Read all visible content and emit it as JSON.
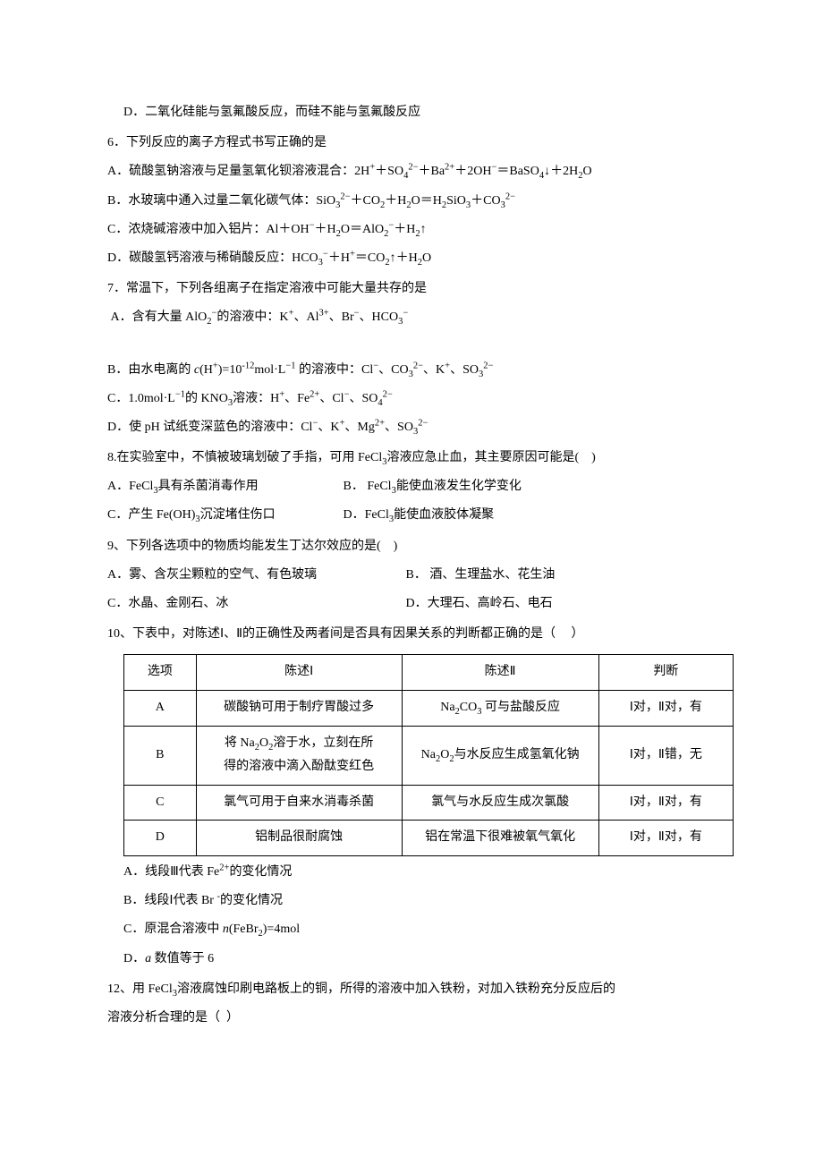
{
  "line_d": "D．二氧化硅能与氢氟酸反应，而硅不能与氢氟酸反应",
  "q6": {
    "stem": "6．下列反应的离子方程式书写正确的是",
    "A": "A．硫酸氢钠溶液与足量氢氧化钡溶液混合：2H<sup>+</sup>＋SO<sub>4</sub><sup>2−</sup>＋Ba<sup>2+</sup>＋2OH<sup>−</sup>＝BaSO<sub>4</sub>↓＋2H<sub>2</sub>O",
    "B": "B．水玻璃中通入过量二氧化碳气体：SiO<sub>3</sub><sup>2−</sup>＋CO<sub>2</sub>＋H<sub>2</sub>O＝H<sub>2</sub>SiO<sub>3</sub>＋CO<sub>3</sub><sup>2−</sup>",
    "C": "C．浓烧碱溶液中加入铝片：Al＋OH<sup>−</sup>＋H<sub>2</sub>O＝AlO<sub>2</sub><sup>−</sup>＋H<sub>2</sub>↑",
    "D": "D．碳酸氢钙溶液与稀硝酸反应：HCO<sub>3</sub><sup>−</sup>＋H<sup>+</sup>＝CO<sub>2</sub>↑＋H<sub>2</sub>O"
  },
  "q7": {
    "stem": "7．常温下，下列各组离子在指定溶液中可能大量共存的是",
    "A": "&nbsp;A．含有大量 AlO<sub>2</sub><sup>−</sup>的溶液中：K<sup>+</sup>、Al<sup>3+</sup>、Br<sup>−</sup>、HCO<sub>3</sub><sup>−</sup>",
    "B": "B．由水电离的 <i>c</i>(H<sup>+</sup>)=10<sup>-12</sup>mol·L<sup>−1</sup> 的溶液中：Cl<sup>−</sup>、CO<sub>3</sub><sup>2−</sup>、K<sup>+</sup>、SO<sub>3</sub><sup>2−</sup>",
    "C": "C．1.0mol·L<sup>−1</sup>的 KNO<sub>3</sub>溶液：H<sup>+</sup>、Fe<sup>2+</sup>、Cl<sup>−</sup>、SO<sub>4</sub><sup>2−</sup>",
    "D": "D．使 pH 试纸变深蓝色的溶液中：Cl<sup>−</sup>、K<sup>+</sup>、Mg<sup>2+</sup>、SO<sub>3</sub><sup>2−</sup>"
  },
  "q8": {
    "stem": "8.在实验室中，不慎被玻璃划破了手指，可用 FeCl<sub>3</sub>溶液应急止血，其主要原因可能是(&nbsp;&nbsp;&nbsp;&nbsp;)",
    "row1a": "A．FeCl<sub>3</sub>具有杀菌消毒作用",
    "row1b": "B．&nbsp;FeCl<sub>3</sub>能使血液发生化学变化",
    "row2a": "C．产生 Fe(OH)<sub>3</sub>沉淀堵住伤口",
    "row2b": "D．FeCl<sub>3</sub>能使血液胶体凝聚"
  },
  "q9": {
    "stem": "9、下列各选项中的物质均能发生丁达尔效应的是(&nbsp;&nbsp;&nbsp;&nbsp;)",
    "row1a": "A．雾、含灰尘颗粒的空气、有色玻璃",
    "row1b": "B．&nbsp;酒、生理盐水、花生油",
    "row2a": "C．水晶、金刚石、冰",
    "row2b": "D．大理石、高岭石、电石"
  },
  "q10": {
    "stem": "10、下表中，对陈述Ⅰ、Ⅱ的正确性及两者间是否具有因果关系的判断都正确的是（&nbsp;&nbsp;&nbsp;&nbsp;&nbsp;）",
    "headers": [
      "选项",
      "陈述Ⅰ",
      "陈述Ⅱ",
      "判断"
    ],
    "rows": [
      {
        "opt": "A",
        "s1": "碳酸钠可用于制疗胃酸过多",
        "s2": "Na<sub>2</sub>CO<sub>3</sub> 可与盐酸反应",
        "jd": "Ⅰ对，Ⅱ对，有"
      },
      {
        "opt": "B",
        "s1": "将 Na<sub>2</sub>O<sub>2</sub>溶于水，立刻在所<br>得的溶液中滴入酚酞变红色",
        "s2": "Na<sub>2</sub>O<sub>2</sub>与水反应生成氢氧化钠",
        "jd": "Ⅰ对，Ⅱ错，无"
      },
      {
        "opt": "C",
        "s1": "氯气可用于自来水消毒杀菌",
        "s2": "氯气与水反应生成次氯酸",
        "jd": "Ⅰ对，Ⅱ对，有"
      },
      {
        "opt": "D",
        "s1": "铝制品很耐腐蚀",
        "s2": "铝在常温下很难被氧气氧化",
        "jd": "Ⅰ对，Ⅱ对，有"
      }
    ],
    "after": {
      "A": "A．线段Ⅲ代表 Fe<sup>2+</sup>的变化情况",
      "B": "B．线段Ⅰ代表 Br&nbsp;<sup>-</sup>的变化情况",
      "C": "C．原混合溶液中 <i>n</i>(FeBr<sub>2</sub>)=4mol",
      "D": "D．<i>a</i> 数值等于 6"
    }
  },
  "q12": {
    "l1": "12、用 FeCl<sub>3</sub>溶液腐蚀印刷电路板上的铜，所得的溶液中加入铁粉，对加入铁粉充分反应后的",
    "l2": "溶液分析合理的是（&nbsp;&nbsp;）"
  }
}
